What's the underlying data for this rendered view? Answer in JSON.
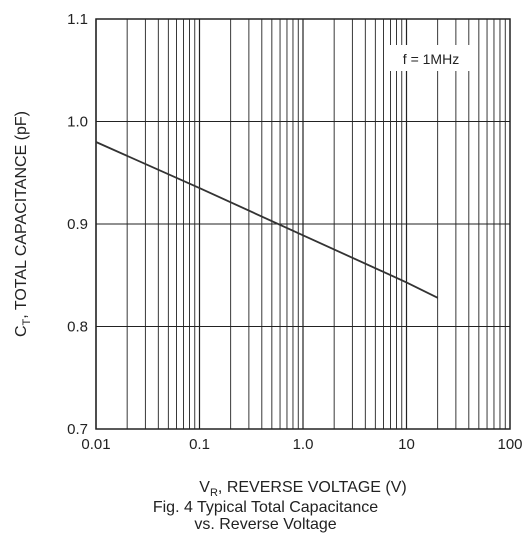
{
  "chart_data": {
    "type": "line",
    "x_scale": "log",
    "xlim": [
      0.01,
      100
    ],
    "ylim": [
      0.7,
      1.1
    ],
    "x_ticks": [
      "0.01",
      "0.1",
      "1.0",
      "10",
      "100"
    ],
    "y_ticks": [
      "0.7",
      "0.8",
      "0.9",
      "1.0",
      "1.1"
    ],
    "xlabel_main": "V",
    "xlabel_sub": "R",
    "xlabel_rest": ", REVERSE VOLTAGE (V)",
    "ylabel_main": "C",
    "ylabel_sub": "T",
    "ylabel_rest": ", TOTAL CAPACITANCE (pF)",
    "annotation": "f = 1MHz",
    "grid": true,
    "series": [
      {
        "x": [
          0.01,
          0.1,
          1.0,
          10,
          20
        ],
        "y": [
          0.98,
          0.935,
          0.889,
          0.843,
          0.828
        ]
      }
    ],
    "colors": {
      "line": "#333333",
      "grid": "#222222",
      "text": "#222222"
    }
  },
  "caption": {
    "line1": "Fig. 4  Typical Total Capacitance",
    "line2": "vs. Reverse Voltage"
  }
}
